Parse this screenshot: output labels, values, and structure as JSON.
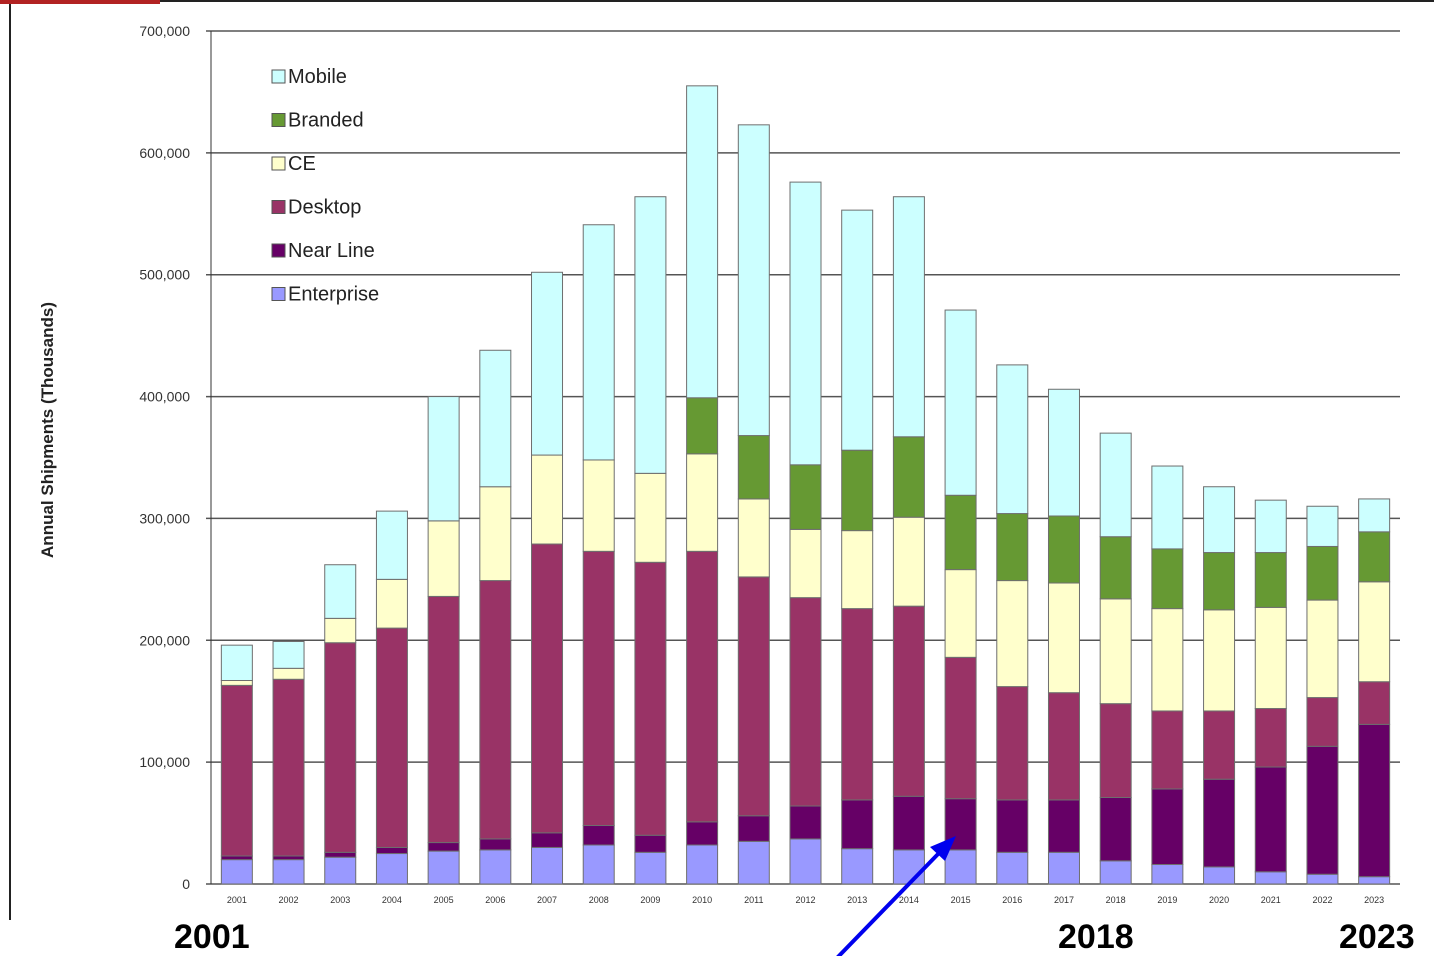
{
  "chart_data": {
    "type": "bar",
    "stacked": true,
    "ylabel": "Annual Shipments (Thousands)",
    "ylim": [
      0,
      700000
    ],
    "yticks": [
      "0",
      "100,000",
      "200,000",
      "300,000",
      "400,000",
      "500,000",
      "600,000",
      "700,000"
    ],
    "ytick_values": [
      0,
      100000,
      200000,
      300000,
      400000,
      500000,
      600000,
      700000
    ],
    "grid": true,
    "legend_position": "top-left",
    "categories": [
      "2001",
      "2002",
      "2003",
      "2004",
      "2005",
      "2006",
      "2007",
      "2008",
      "2009",
      "2010",
      "2011",
      "2012",
      "2013",
      "2014",
      "2015",
      "2016",
      "2017",
      "2018",
      "2019",
      "2020",
      "2021",
      "2022",
      "2023"
    ],
    "series": [
      {
        "name": "Enterprise",
        "color": "#9999ff",
        "values": [
          20000,
          20000,
          22000,
          25000,
          27000,
          28000,
          30000,
          32000,
          26000,
          32000,
          35000,
          37000,
          29000,
          28000,
          28000,
          26000,
          26000,
          19000,
          16000,
          14000,
          10000,
          8000,
          6000
        ]
      },
      {
        "name": "Near Line",
        "color": "#660066",
        "values": [
          3000,
          3000,
          4000,
          5000,
          7000,
          9000,
          12000,
          16000,
          14000,
          19000,
          21000,
          27000,
          40000,
          44000,
          42000,
          43000,
          43000,
          52000,
          62000,
          72000,
          86000,
          105000,
          125000
        ]
      },
      {
        "name": "Desktop",
        "color": "#993366",
        "values": [
          140000,
          145000,
          172000,
          180000,
          202000,
          212000,
          237000,
          225000,
          224000,
          222000,
          196000,
          171000,
          157000,
          156000,
          116000,
          93000,
          88000,
          77000,
          64000,
          56000,
          48000,
          40000,
          35000
        ]
      },
      {
        "name": "CE",
        "color": "#ffffcc",
        "values": [
          4000,
          9000,
          20000,
          40000,
          62000,
          77000,
          73000,
          75000,
          73000,
          80000,
          64000,
          56000,
          64000,
          73000,
          72000,
          87000,
          90000,
          86000,
          84000,
          83000,
          83000,
          80000,
          82000
        ]
      },
      {
        "name": "Branded",
        "color": "#669933",
        "values": [
          0,
          0,
          0,
          0,
          0,
          0,
          0,
          0,
          0,
          46000,
          52000,
          53000,
          66000,
          66000,
          61000,
          55000,
          55000,
          51000,
          49000,
          47000,
          45000,
          44000,
          41000
        ]
      },
      {
        "name": "Mobile",
        "color": "#ccffff",
        "values": [
          29000,
          22000,
          44000,
          56000,
          102000,
          112000,
          150000,
          193000,
          227000,
          256000,
          255000,
          232000,
          197000,
          197000,
          152000,
          122000,
          104000,
          85000,
          68000,
          54000,
          43000,
          33000,
          27000
        ]
      }
    ],
    "annotations": [
      "2001",
      "2018",
      "2023"
    ]
  },
  "colors": {
    "grid": "#555555",
    "axis": "#333333",
    "bar_stroke": "#6e6e6e",
    "arrow": "#0000ee",
    "corner_accent": "#b22222"
  }
}
